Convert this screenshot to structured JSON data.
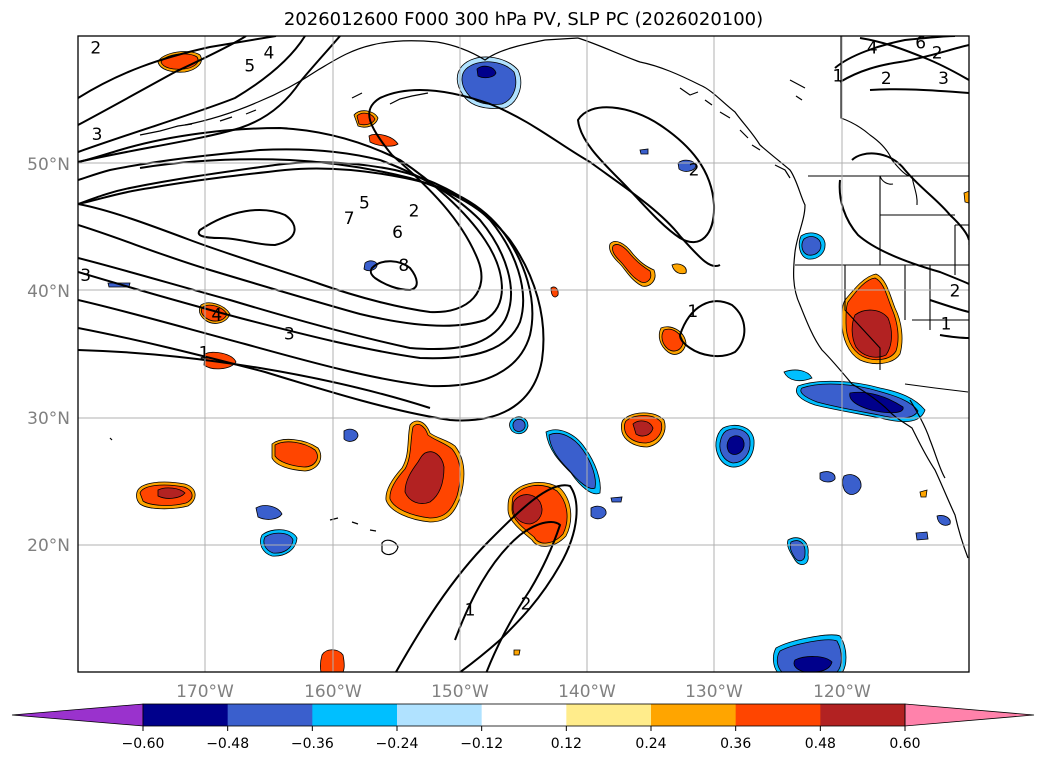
{
  "title": "2026012600 F000 300 hPa PV, SLP PC (2026020100)",
  "chart_data": {
    "type": "contour-map",
    "title": "2026012600 F000 300 hPa PV, SLP PC (2026020100)",
    "map": {
      "projection": "PlateCarree",
      "lon_range": [
        -180,
        -110
      ],
      "lat_range": [
        10,
        60
      ],
      "grid": true,
      "lat_ticks": [
        "20°N",
        "30°N",
        "40°N",
        "50°N"
      ],
      "lon_ticks": [
        "170°W",
        "160°W",
        "150°W",
        "140°W",
        "130°W",
        "120°W"
      ]
    },
    "colorbar": {
      "orientation": "horizontal",
      "extend": "both",
      "levels": [
        -0.72,
        -0.6,
        -0.48,
        -0.36,
        -0.24,
        -0.12,
        0.12,
        0.24,
        0.36,
        0.48,
        0.6,
        0.72
      ],
      "colors": [
        "#9a32cd",
        "#00008b",
        "#3a5fcd",
        "#00bfff",
        "#b0e2ff",
        "#ffffff",
        "#ffec8b",
        "#ffa500",
        "#ff4500",
        "#b22222",
        "#ff82ab"
      ],
      "tick_labels": [
        "−0.60",
        "−0.48",
        "−0.36",
        "−0.24",
        "−0.12",
        "0.12",
        "0.24",
        "0.36",
        "0.48",
        "0.60"
      ]
    },
    "contour_labels": [
      {
        "text": "2",
        "lon": -178.6,
        "lat": 59.1
      },
      {
        "text": "5",
        "lon": -166.5,
        "lat": 57.7
      },
      {
        "text": "4",
        "lon": -165.0,
        "lat": 58.7
      },
      {
        "text": "3",
        "lon": -178.5,
        "lat": 52.3
      },
      {
        "text": "5",
        "lon": -157.5,
        "lat": 46.9
      },
      {
        "text": "2",
        "lon": -153.6,
        "lat": 46.3
      },
      {
        "text": "7",
        "lon": -158.7,
        "lat": 45.7
      },
      {
        "text": "6",
        "lon": -154.9,
        "lat": 44.6
      },
      {
        "text": "8",
        "lon": -154.4,
        "lat": 42.0
      },
      {
        "text": "3",
        "lon": -179.4,
        "lat": 41.2
      },
      {
        "text": "4",
        "lon": -169.1,
        "lat": 38.1
      },
      {
        "text": "3",
        "lon": -163.4,
        "lat": 36.6
      },
      {
        "text": "1",
        "lon": -170.1,
        "lat": 35.1
      },
      {
        "text": "2",
        "lon": -131.6,
        "lat": 49.5
      },
      {
        "text": "1",
        "lon": -131.7,
        "lat": 38.4
      },
      {
        "text": "4",
        "lon": -117.6,
        "lat": 59.1
      },
      {
        "text": "6",
        "lon": -113.8,
        "lat": 59.5
      },
      {
        "text": "2",
        "lon": -112.5,
        "lat": 58.7
      },
      {
        "text": "1",
        "lon": -120.3,
        "lat": 56.9
      },
      {
        "text": "2",
        "lon": -116.5,
        "lat": 56.7
      },
      {
        "text": "3",
        "lon": -112.0,
        "lat": 56.7
      },
      {
        "text": "2",
        "lon": -111.1,
        "lat": 40.0
      },
      {
        "text": "1",
        "lon": -111.8,
        "lat": 37.4
      },
      {
        "text": "1",
        "lon": -149.2,
        "lat": 14.9
      },
      {
        "text": "2",
        "lon": -144.8,
        "lat": 15.4
      }
    ]
  }
}
